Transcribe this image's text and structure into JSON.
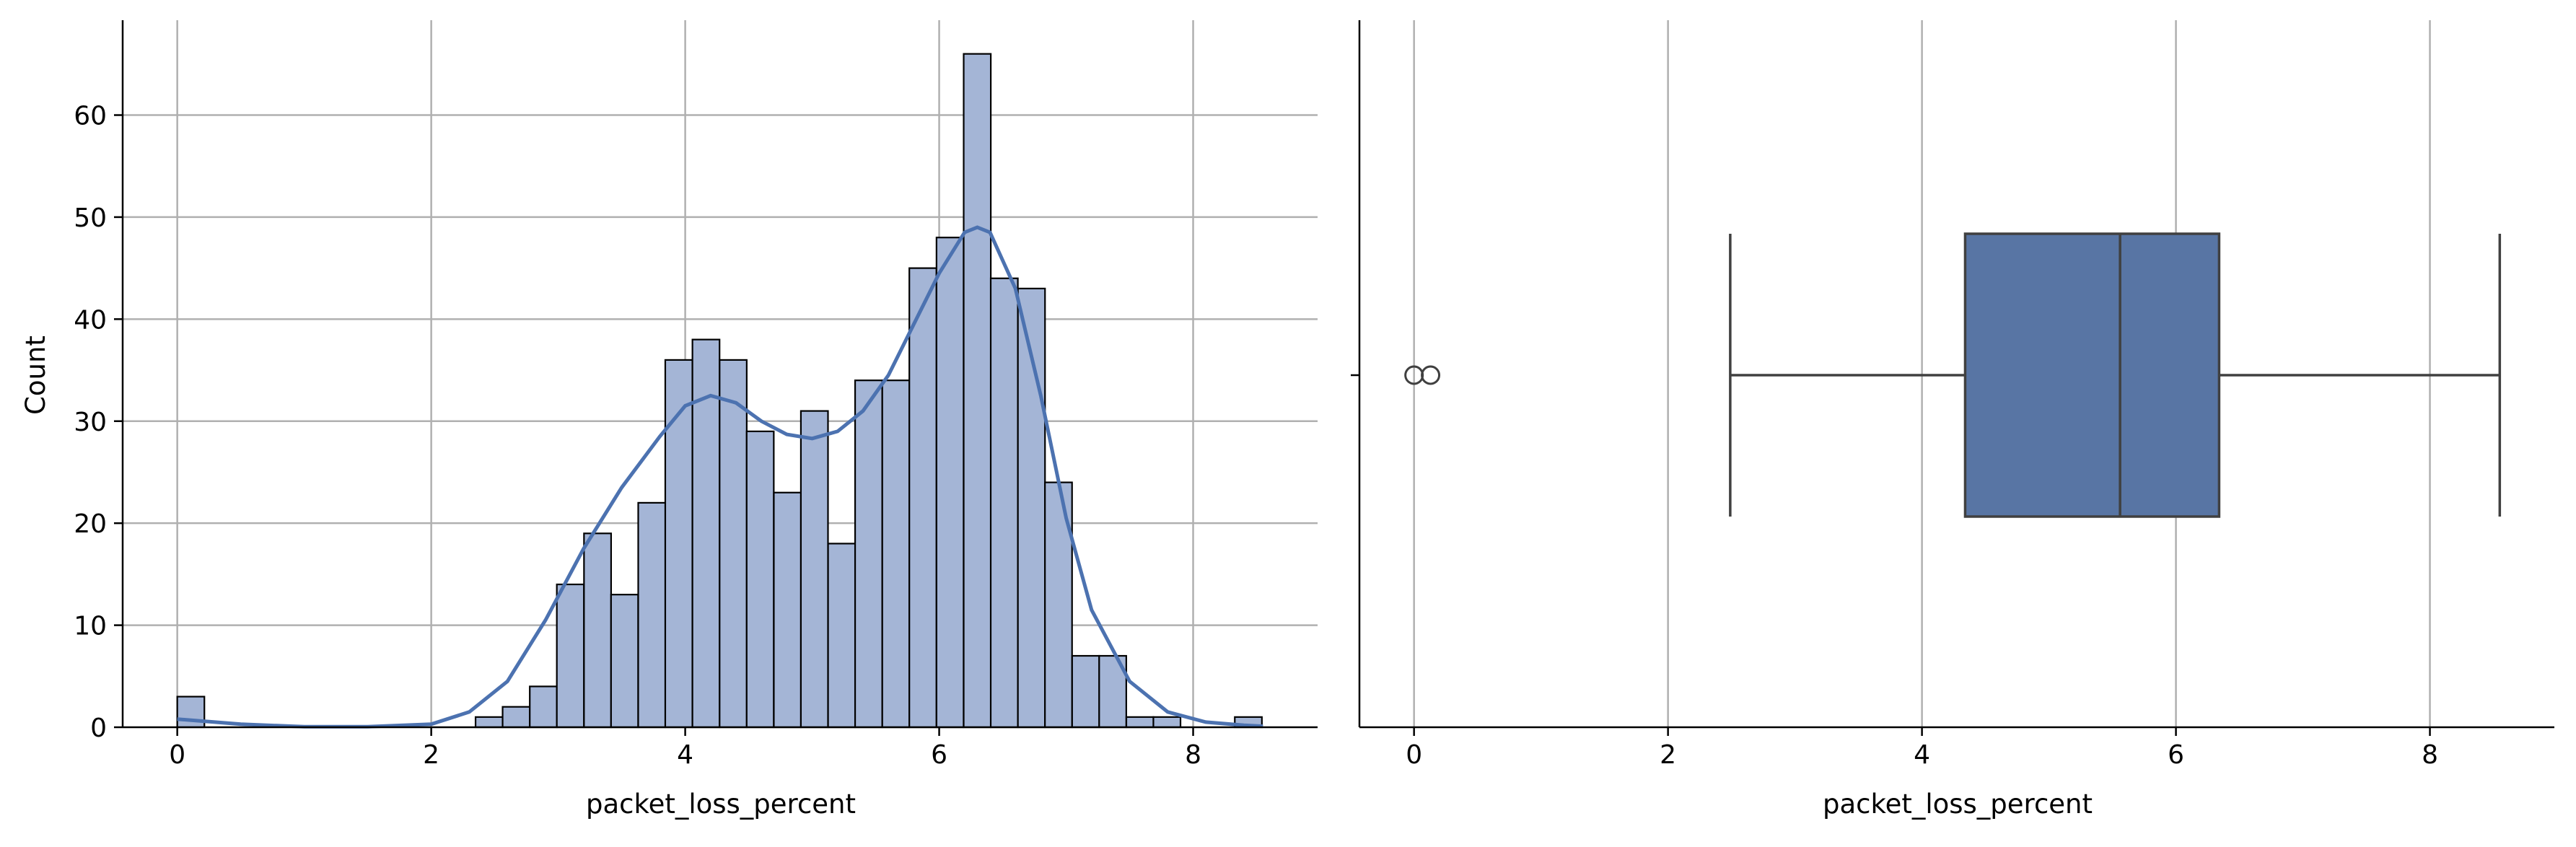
{
  "chart_data": [
    {
      "type": "bar",
      "subtype": "histogram",
      "xlabel": "packet_loss_percent",
      "ylabel": "Count",
      "xlim": [
        -0.43,
        8.98
      ],
      "ylim": [
        0,
        69.3
      ],
      "xticks": [
        0,
        2,
        4,
        6,
        8
      ],
      "yticks": [
        0,
        10,
        20,
        30,
        40,
        50,
        60
      ],
      "grid": true,
      "bar_color": "#a4b5d6",
      "edge_color": "#000000",
      "kde_color": "#4c72b0",
      "bin_width": 0.2135,
      "bin_start": 0.0,
      "bins": [
        {
          "x0": 0.0,
          "count": 3
        },
        {
          "x0": 2.349,
          "count": 1
        },
        {
          "x0": 2.562,
          "count": 2
        },
        {
          "x0": 2.776,
          "count": 4
        },
        {
          "x0": 2.989,
          "count": 14
        },
        {
          "x0": 3.203,
          "count": 19
        },
        {
          "x0": 3.416,
          "count": 13
        },
        {
          "x0": 3.63,
          "count": 22
        },
        {
          "x0": 3.843,
          "count": 36
        },
        {
          "x0": 4.057,
          "count": 38
        },
        {
          "x0": 4.271,
          "count": 36
        },
        {
          "x0": 4.484,
          "count": 29
        },
        {
          "x0": 4.698,
          "count": 23
        },
        {
          "x0": 4.911,
          "count": 31
        },
        {
          "x0": 5.125,
          "count": 18
        },
        {
          "x0": 5.338,
          "count": 34
        },
        {
          "x0": 5.552,
          "count": 34
        },
        {
          "x0": 5.765,
          "count": 45
        },
        {
          "x0": 5.979,
          "count": 48
        },
        {
          "x0": 6.193,
          "count": 66
        },
        {
          "x0": 6.406,
          "count": 44
        },
        {
          "x0": 6.62,
          "count": 43
        },
        {
          "x0": 6.833,
          "count": 24
        },
        {
          "x0": 7.047,
          "count": 7
        },
        {
          "x0": 7.26,
          "count": 7
        },
        {
          "x0": 7.474,
          "count": 1
        },
        {
          "x0": 7.687,
          "count": 1
        },
        {
          "x0": 8.328,
          "count": 1
        }
      ],
      "kde": {
        "x": [
          0.0,
          0.5,
          1.0,
          1.5,
          2.0,
          2.3,
          2.6,
          2.9,
          3.2,
          3.5,
          3.8,
          4.0,
          4.2,
          4.4,
          4.6,
          4.8,
          5.0,
          5.2,
          5.4,
          5.6,
          5.8,
          6.0,
          6.2,
          6.3,
          6.4,
          6.6,
          6.8,
          7.0,
          7.2,
          7.5,
          7.8,
          8.1,
          8.4,
          8.55
        ],
        "y": [
          0.8,
          0.3,
          0.05,
          0.05,
          0.3,
          1.5,
          4.5,
          10.5,
          17.5,
          23.5,
          28.5,
          31.5,
          32.5,
          31.8,
          30.0,
          28.7,
          28.3,
          29.0,
          31.0,
          34.5,
          39.5,
          44.5,
          48.5,
          49.0,
          48.5,
          43.0,
          32.5,
          20.5,
          11.5,
          4.5,
          1.5,
          0.5,
          0.2,
          0.1
        ]
      }
    },
    {
      "type": "box",
      "xlabel": "packet_loss_percent",
      "xlim": [
        -0.43,
        8.98
      ],
      "xticks": [
        0,
        2,
        4,
        6,
        8
      ],
      "grid": true,
      "box_color": "#5875a4",
      "line_color": "#404040",
      "whisker_low": 2.49,
      "q1": 4.34,
      "median": 5.56,
      "q3": 6.34,
      "whisker_high": 8.55,
      "outliers": [
        0.0,
        0.13
      ]
    }
  ]
}
